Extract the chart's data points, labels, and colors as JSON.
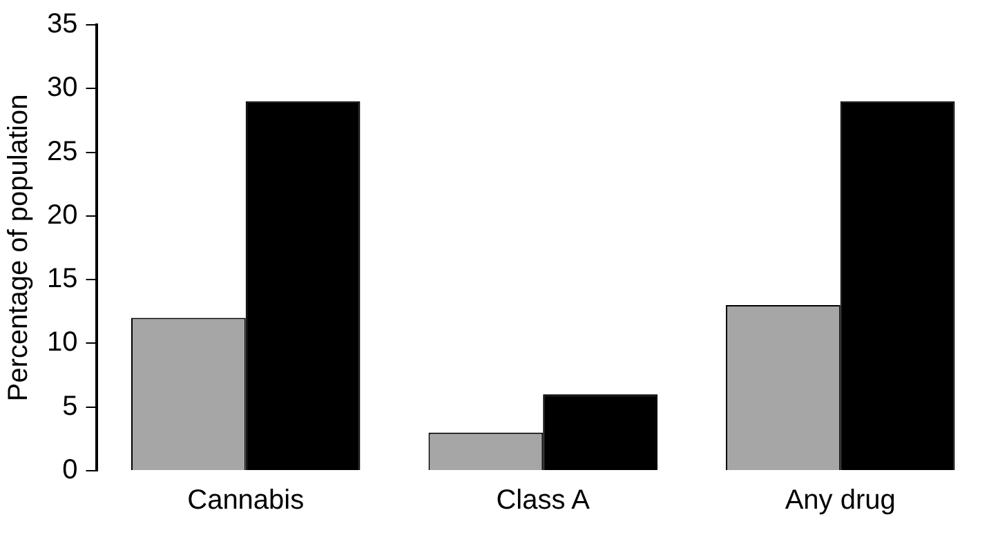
{
  "chart_data": {
    "type": "bar",
    "ylabel": "Percentage of population",
    "categories": [
      "Cannabis",
      "Class A",
      "Any drug"
    ],
    "series": [
      {
        "color": "#a6a6a6",
        "values": [
          12,
          3,
          13
        ]
      },
      {
        "color": "#000000",
        "values": [
          29,
          6,
          29
        ]
      }
    ],
    "ylim": [
      0,
      35
    ],
    "yticks": [
      0,
      5,
      10,
      15,
      20,
      25,
      30,
      35
    ],
    "grid": false,
    "legend": false
  }
}
